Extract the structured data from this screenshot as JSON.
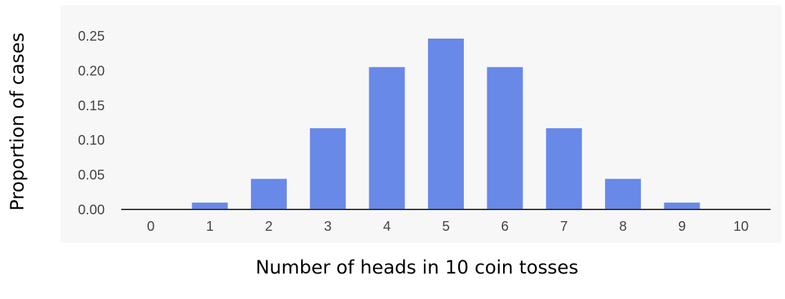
{
  "chart_data": {
    "type": "bar",
    "title": "",
    "xlabel": "Number of heads in 10 coin tosses",
    "ylabel": "Proportion of cases",
    "categories": [
      "0",
      "1",
      "2",
      "3",
      "4",
      "5",
      "6",
      "7",
      "8",
      "9",
      "10"
    ],
    "values": [
      0.001,
      0.0098,
      0.044,
      0.117,
      0.205,
      0.246,
      0.205,
      0.117,
      0.044,
      0.0098,
      0.001
    ],
    "yticks": [
      "0.00",
      "0.05",
      "0.10",
      "0.15",
      "0.20",
      "0.25"
    ],
    "ylim": [
      0,
      0.25
    ],
    "grid": false,
    "legend": "none",
    "colors": {
      "bar": "#6889E8",
      "plot_background": "#F7F7F7",
      "axis": "#333333",
      "tick_text": "#444444"
    }
  }
}
